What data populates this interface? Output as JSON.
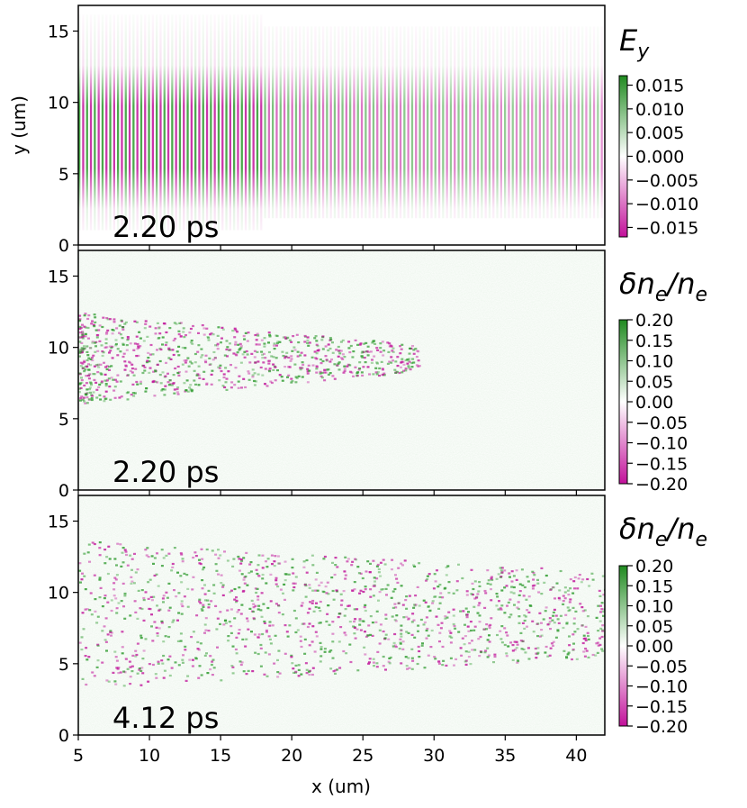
{
  "chart_data": [
    {
      "type": "heatmap",
      "field": "E_y",
      "colorbar_title": "E_y",
      "annotation": "2.20 ps",
      "xlim": [
        5,
        42
      ],
      "ylim": [
        0,
        16.8
      ],
      "x_ticks": [
        5,
        10,
        15,
        20,
        25,
        30,
        35,
        40
      ],
      "y_ticks": [
        0,
        5,
        10,
        15
      ],
      "ylabel": "y (um)",
      "colorbar_range": [
        -0.017,
        0.017
      ],
      "colorbar_ticks": [
        0.015,
        0.01,
        0.005,
        0.0,
        -0.005,
        -0.01,
        -0.015
      ],
      "colorbar_tick_labels": [
        "0.015",
        "0.010",
        "0.005",
        "0.000",
        "−0.005",
        "−0.010",
        "−0.015"
      ],
      "colormap": {
        "negative": "#c2179c",
        "zero": "#ffffff",
        "positive": "#2a9a2a"
      }
    },
    {
      "type": "heatmap",
      "field": "delta n_e / n_e",
      "colorbar_title": "δn_e/n_e",
      "annotation": "2.20 ps",
      "xlim": [
        5,
        42
      ],
      "ylim": [
        0,
        16.8
      ],
      "x_ticks": [
        5,
        10,
        15,
        20,
        25,
        30,
        35,
        40
      ],
      "y_ticks": [
        0,
        5,
        10,
        15
      ],
      "colorbar_range": [
        -0.2,
        0.2
      ],
      "colorbar_ticks": [
        0.2,
        0.15,
        0.1,
        0.05,
        0.0,
        -0.05,
        -0.1,
        -0.15,
        -0.2
      ],
      "colorbar_tick_labels": [
        "0.20",
        "0.15",
        "0.10",
        "0.05",
        "0.00",
        "−0.05",
        "−0.10",
        "−0.15",
        "−0.20"
      ],
      "colormap": {
        "negative": "#c2179c",
        "zero": "#ffffff",
        "positive": "#2a9a2a"
      }
    },
    {
      "type": "heatmap",
      "field": "delta n_e / n_e",
      "colorbar_title": "δn_e/n_e",
      "annotation": "4.12 ps",
      "xlim": [
        5,
        42
      ],
      "ylim": [
        0,
        16.8
      ],
      "x_ticks": [
        5,
        10,
        15,
        20,
        25,
        30,
        35,
        40
      ],
      "y_ticks": [
        0,
        5,
        10,
        15
      ],
      "xlabel": "x (um)",
      "colorbar_range": [
        -0.2,
        0.2
      ],
      "colorbar_ticks": [
        0.2,
        0.15,
        0.1,
        0.05,
        0.0,
        -0.05,
        -0.1,
        -0.15,
        -0.2
      ],
      "colorbar_tick_labels": [
        "0.20",
        "0.15",
        "0.10",
        "0.05",
        "0.00",
        "−0.05",
        "−0.10",
        "−0.15",
        "−0.20"
      ],
      "colormap": {
        "negative": "#c2179c",
        "zero": "#ffffff",
        "positive": "#2a9a2a"
      }
    }
  ]
}
